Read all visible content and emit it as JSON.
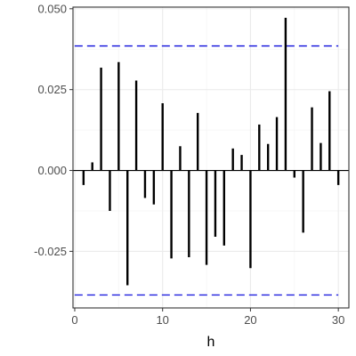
{
  "chart_data": {
    "type": "bar",
    "xlabel": "h",
    "ylabel": "",
    "title": "",
    "x": [
      1,
      2,
      3,
      4,
      5,
      6,
      7,
      8,
      9,
      10,
      11,
      12,
      13,
      14,
      15,
      16,
      17,
      18,
      19,
      20,
      21,
      22,
      23,
      24,
      25,
      26,
      27,
      28,
      29,
      30
    ],
    "values": [
      -0.0045,
      0.0025,
      0.0318,
      -0.0125,
      0.0335,
      -0.0355,
      0.0278,
      -0.0085,
      -0.0105,
      0.0208,
      -0.0272,
      0.0075,
      -0.0268,
      0.0178,
      -0.0292,
      -0.0205,
      -0.0232,
      0.0068,
      0.0048,
      -0.0302,
      0.0142,
      0.0082,
      0.0165,
      0.0472,
      -0.0022,
      -0.0192,
      0.0195,
      0.0085,
      0.0245,
      -0.0045
    ],
    "xlim": [
      -0.2,
      31.2
    ],
    "ylim": [
      -0.0425,
      0.0505
    ],
    "xticks": [
      0,
      10,
      20,
      30
    ],
    "xtick_labels": [
      "0",
      "10",
      "20",
      "30"
    ],
    "yticks": [
      -0.025,
      0.0,
      0.025,
      0.05
    ],
    "ytick_labels": [
      "-0.025",
      "0.000",
      "0.025",
      "0.050"
    ],
    "confidence_bounds": [
      0.0385,
      -0.0385
    ],
    "zero_line": 0,
    "grid": true,
    "colors": {
      "bars": "#000000",
      "bounds": "#1f1fdd",
      "grid_major": "#ebebeb",
      "grid_minor": "#f5f5f5",
      "panel_border": "#333333",
      "zero_line": "#000000"
    }
  }
}
